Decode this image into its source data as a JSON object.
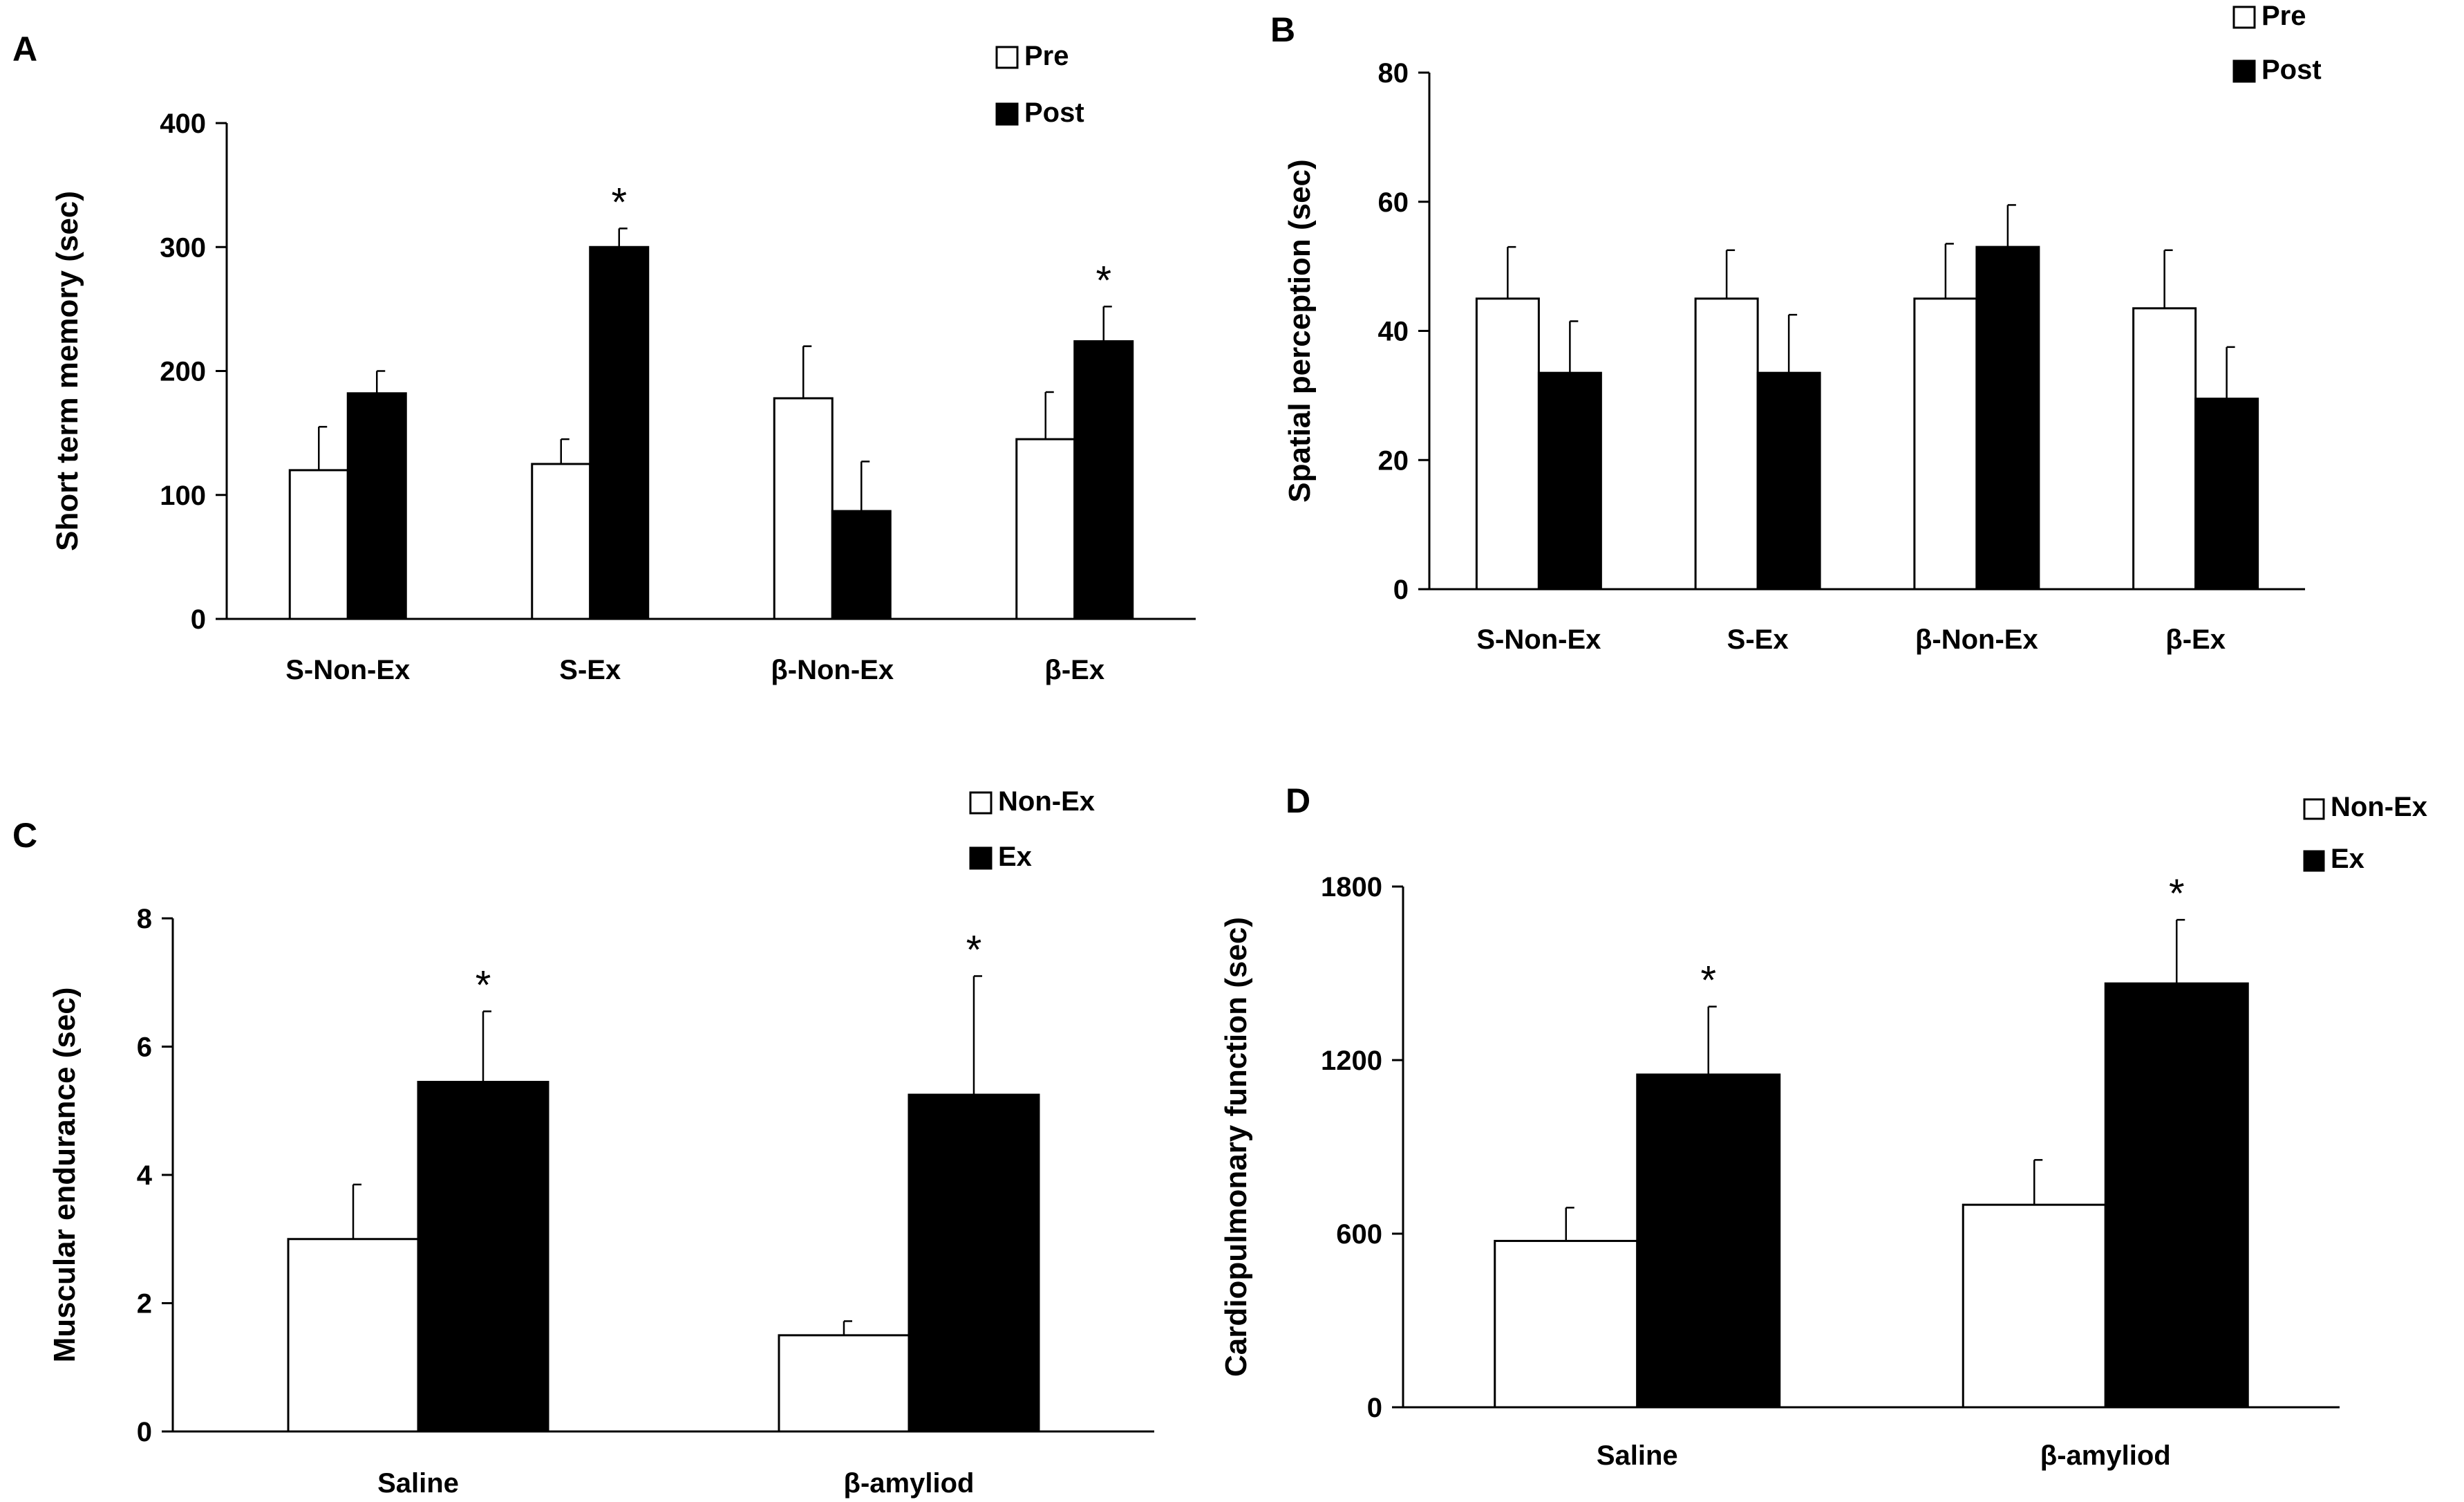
{
  "chart_data": [
    {
      "panel": "A",
      "type": "bar",
      "categories": [
        "S-Non-Ex",
        "S-Ex",
        "β-Non-Ex",
        "β-Ex"
      ],
      "series": [
        {
          "name": "Pre",
          "color": "#ffffff",
          "values": [
            120,
            125,
            178,
            145
          ],
          "errors": [
            35,
            20,
            42,
            38
          ]
        },
        {
          "name": "Post",
          "color": "#000000",
          "values": [
            182,
            300,
            87,
            224
          ],
          "errors": [
            18,
            15,
            40,
            28
          ]
        }
      ],
      "significance": [
        null,
        "*",
        null,
        "*"
      ],
      "ylabel": "Short term memory (sec)",
      "ylim": [
        0,
        400
      ],
      "yticks": [
        0,
        100,
        200,
        300,
        400
      ],
      "legend": "top-right"
    },
    {
      "panel": "B",
      "type": "bar",
      "categories": [
        "S-Non-Ex",
        "S-Ex",
        "β-Non-Ex",
        "β-Ex"
      ],
      "series": [
        {
          "name": "Pre",
          "color": "#ffffff",
          "values": [
            45,
            45,
            45,
            43.5
          ],
          "errors": [
            8,
            7.5,
            8.5,
            9
          ]
        },
        {
          "name": "Post",
          "color": "#000000",
          "values": [
            33.5,
            33.5,
            53,
            29.5
          ],
          "errors": [
            8,
            9,
            6.5,
            8
          ]
        }
      ],
      "significance": [
        null,
        null,
        null,
        null
      ],
      "ylabel": "Spatial perception (sec)",
      "ylim": [
        0,
        80
      ],
      "yticks": [
        0,
        20,
        40,
        60,
        80
      ],
      "legend": "top-right"
    },
    {
      "panel": "C",
      "type": "bar",
      "categories": [
        "Saline",
        "β-amyliod"
      ],
      "series": [
        {
          "name": "Non-Ex",
          "color": "#ffffff",
          "values": [
            3,
            1.5
          ],
          "errors": [
            0.85,
            0.22
          ]
        },
        {
          "name": "Ex",
          "color": "#000000",
          "values": [
            5.45,
            5.25
          ],
          "errors": [
            1.1,
            1.85
          ]
        }
      ],
      "significance": [
        "*",
        "*"
      ],
      "ylabel": "Muscular endurance (sec)",
      "ylim": [
        0,
        8
      ],
      "yticks": [
        0,
        2,
        4,
        6,
        8
      ],
      "legend": "top-right"
    },
    {
      "panel": "D",
      "type": "bar",
      "categories": [
        "Saline",
        "β-amyliod"
      ],
      "series": [
        {
          "name": "Non-Ex",
          "color": "#ffffff",
          "values": [
            575,
            700
          ],
          "errors": [
            115,
            155
          ]
        },
        {
          "name": "Ex",
          "color": "#000000",
          "values": [
            1150,
            1465
          ],
          "errors": [
            235,
            220
          ]
        }
      ],
      "significance": [
        "*",
        "*"
      ],
      "ylabel": "Cardiopulmonary function (sec)",
      "ylim": [
        0,
        1800
      ],
      "yticks": [
        0,
        600,
        1200,
        1800
      ],
      "legend": "top-right"
    }
  ]
}
